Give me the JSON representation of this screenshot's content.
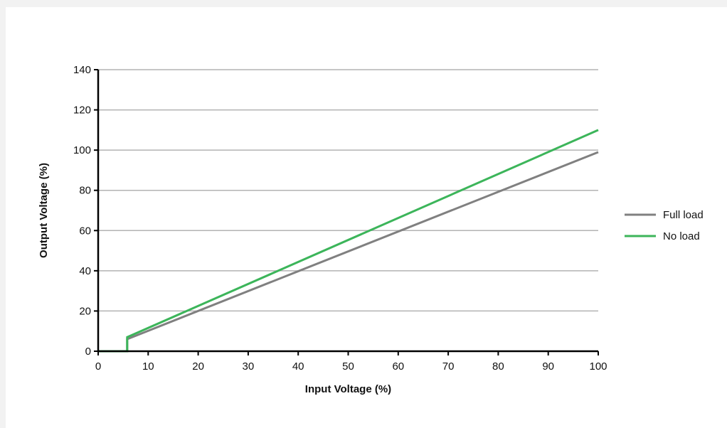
{
  "chart_data": {
    "type": "line",
    "title": "",
    "xlabel": "Input Voltage (%)",
    "ylabel": "Output Voltage (%)",
    "xlim": [
      0,
      100
    ],
    "ylim": [
      0,
      140
    ],
    "x_ticks": [
      0,
      10,
      20,
      30,
      40,
      50,
      60,
      70,
      80,
      90,
      100
    ],
    "y_ticks": [
      0,
      20,
      40,
      60,
      80,
      100,
      120,
      140
    ],
    "grid": "horizontal",
    "legend_position": "right",
    "series": [
      {
        "name": "Full load",
        "color": "#808080",
        "points": [
          [
            0,
            0
          ],
          [
            5.8,
            0
          ],
          [
            5.8,
            6
          ],
          [
            100,
            99
          ]
        ]
      },
      {
        "name": "No load",
        "color": "#3cb55a",
        "points": [
          [
            0,
            0
          ],
          [
            5.8,
            0
          ],
          [
            5.8,
            7
          ],
          [
            100,
            110
          ]
        ]
      }
    ]
  }
}
